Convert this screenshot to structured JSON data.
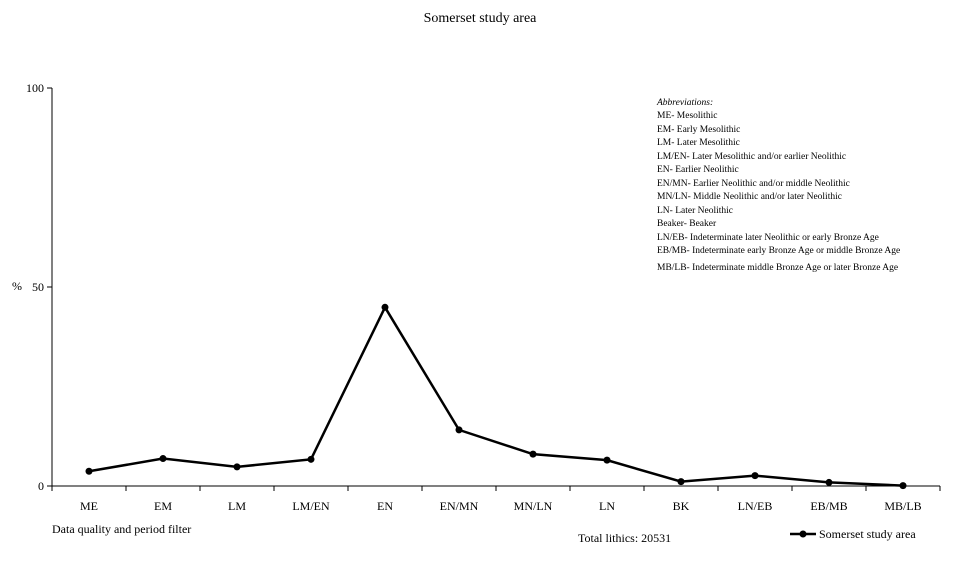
{
  "chart_data": {
    "type": "line",
    "title": "Somerset study area",
    "ylabel": "%",
    "xlabel": "",
    "ylim": [
      0,
      100
    ],
    "yticks": [
      0,
      50,
      100
    ],
    "grid": false,
    "categories": [
      "ME",
      "EM",
      "LM",
      "LM/EN",
      "EN",
      "EN/MN",
      "MN/LN",
      "LN",
      "BK",
      "LN/EB",
      "EB/MB",
      "MB/LB"
    ],
    "series": [
      {
        "name": "Somerset study area",
        "color": "#000000",
        "values": [
          3.7,
          6.9,
          4.8,
          6.7,
          44.9,
          14.1,
          8.0,
          6.5,
          1.1,
          2.6,
          0.9,
          0.1
        ]
      }
    ],
    "legend_position": "bottom-right",
    "abbreviations": {
      "heading": "Abbreviations:",
      "items": [
        "ME- Mesolithic",
        "EM- Early Mesolithic",
        "LM- Later Mesolithic",
        "LM/EN- Later Mesolithic and/or earlier Neolithic",
        "EN- Earlier Neolithic",
        "EN/MN- Earlier Neolithic and/or middle Neolithic",
        "MN/LN- Middle Neolithic and/or later Neolithic",
        "LN- Later Neolithic",
        "Beaker- Beaker",
        "LN/EB- Indeterminate later Neolithic or early Bronze Age",
        "EB/MB- Indeterminate early Bronze Age or middle Bronze Age",
        "MB/LB- Indeterminate middle Bronze Age or later Bronze Age"
      ]
    },
    "footer_left": "Data quality and period filter",
    "footer_center": "Total lithics: 20531"
  }
}
